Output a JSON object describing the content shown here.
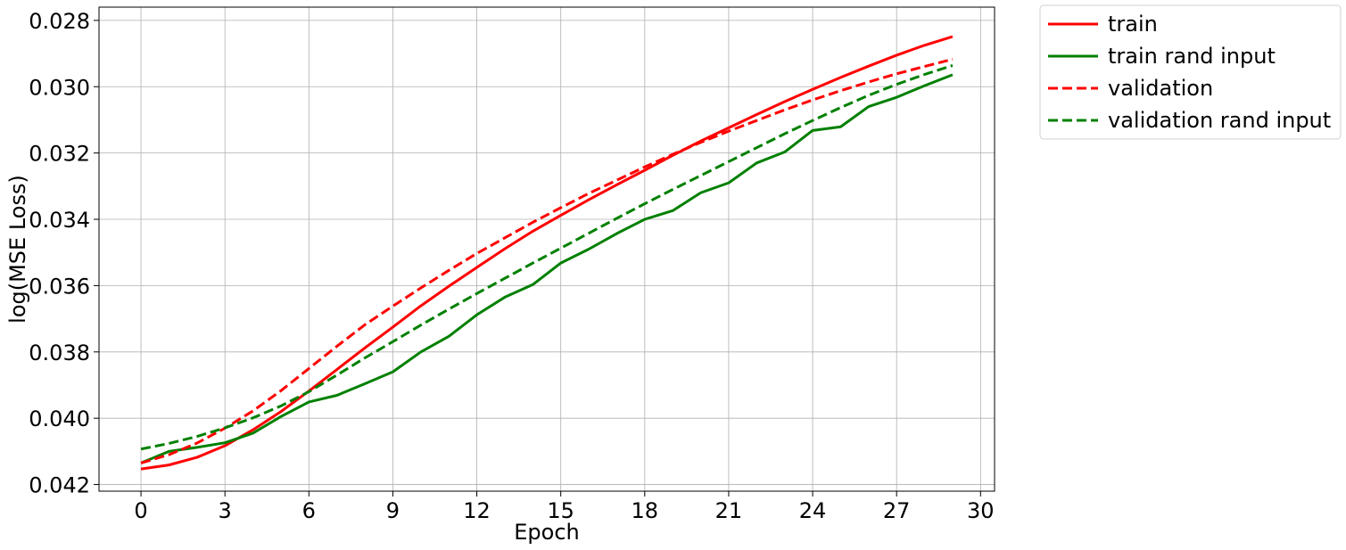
{
  "chart_data": {
    "type": "line",
    "xlabel": "Epoch",
    "ylabel": "log(MSE Loss)",
    "xlim": [
      -1.5,
      30.5
    ],
    "ylim": [
      0.0422,
      0.0276
    ],
    "y_inverted": true,
    "grid": true,
    "legend_placement": "outside-top-right",
    "x_ticks": [
      0,
      3,
      6,
      9,
      12,
      15,
      18,
      21,
      24,
      27,
      30
    ],
    "y_ticks": [
      0.028,
      0.03,
      0.032,
      0.034,
      0.036,
      0.038,
      0.04,
      0.042
    ],
    "y_tick_labels": [
      "0.028",
      "0.030",
      "0.032",
      "0.034",
      "0.036",
      "0.038",
      "0.040",
      "0.042"
    ],
    "x": [
      0,
      1,
      2,
      3,
      4,
      5,
      6,
      7,
      8,
      9,
      10,
      11,
      12,
      13,
      14,
      15,
      16,
      17,
      18,
      19,
      20,
      21,
      22,
      23,
      24,
      25,
      26,
      27,
      28,
      29
    ],
    "series": [
      {
        "name": "train",
        "color": "#ff0000",
        "dash": "solid",
        "values": [
          0.04153,
          0.04141,
          0.04118,
          0.04083,
          0.04035,
          0.0398,
          0.03918,
          0.03853,
          0.03788,
          0.03725,
          0.03661,
          0.03602,
          0.03545,
          0.03489,
          0.03436,
          0.03388,
          0.03341,
          0.03296,
          0.03252,
          0.03207,
          0.03164,
          0.03124,
          0.03084,
          0.03045,
          0.03008,
          0.02972,
          0.02938,
          0.02905,
          0.02875,
          0.02849
        ]
      },
      {
        "name": "train rand input",
        "color": "#008000",
        "dash": "solid",
        "values": [
          0.04135,
          0.041,
          0.04088,
          0.04074,
          0.04045,
          0.03995,
          0.03951,
          0.03931,
          0.03896,
          0.0386,
          0.038,
          0.03753,
          0.03688,
          0.03635,
          0.03597,
          0.03532,
          0.0349,
          0.03443,
          0.034,
          0.03374,
          0.0332,
          0.0329,
          0.0323,
          0.03197,
          0.03132,
          0.03121,
          0.0306,
          0.03032,
          0.02997,
          0.02964
        ]
      },
      {
        "name": "validation",
        "color": "#ff0000",
        "dash": "dashed",
        "values": [
          0.04135,
          0.0411,
          0.04075,
          0.0403,
          0.03978,
          0.03917,
          0.0385,
          0.03783,
          0.03718,
          0.03662,
          0.03607,
          0.03554,
          0.03503,
          0.03456,
          0.03409,
          0.03365,
          0.03322,
          0.03282,
          0.03242,
          0.03204,
          0.03168,
          0.03134,
          0.03102,
          0.0307,
          0.0304,
          0.03012,
          0.02986,
          0.02961,
          0.02939,
          0.02917
        ]
      },
      {
        "name": "validation rand input",
        "color": "#008000",
        "dash": "dashed",
        "values": [
          0.04093,
          0.04076,
          0.04055,
          0.04029,
          0.03999,
          0.03963,
          0.0392,
          0.0387,
          0.03818,
          0.03769,
          0.03719,
          0.03671,
          0.03624,
          0.03578,
          0.03532,
          0.03487,
          0.03442,
          0.03397,
          0.03353,
          0.0331,
          0.03268,
          0.03226,
          0.03184,
          0.03142,
          0.03102,
          0.03063,
          0.03026,
          0.02993,
          0.02963,
          0.02936
        ]
      }
    ]
  }
}
